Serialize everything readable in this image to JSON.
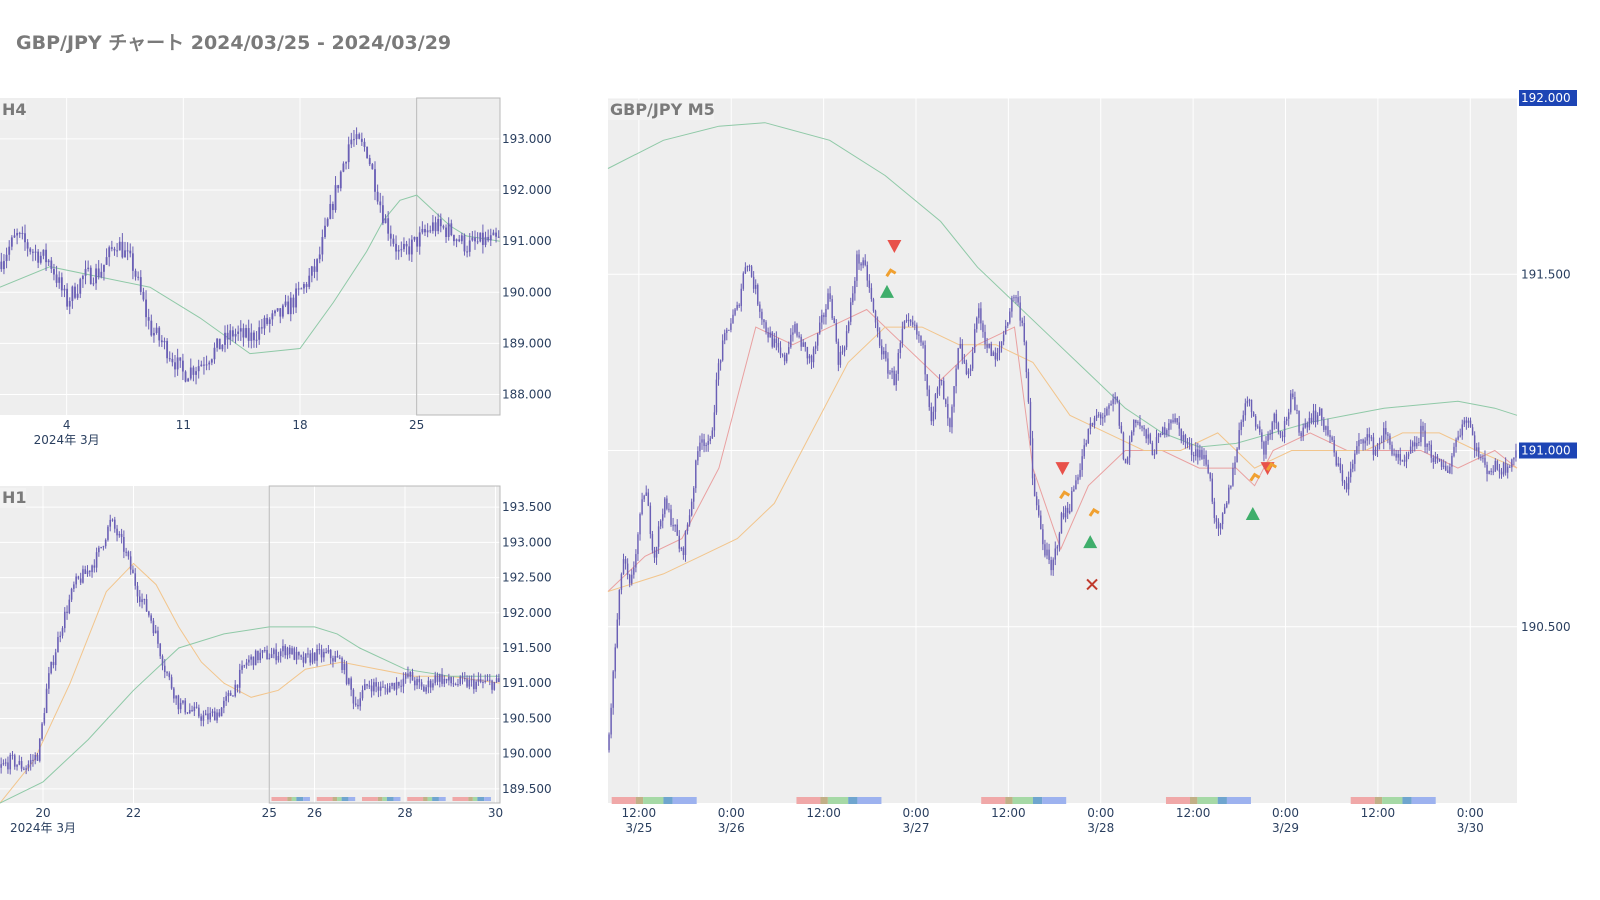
{
  "page": {
    "title": "GBP/JPY チャート 2024/03/25 - 2024/03/29"
  },
  "colors": {
    "candle": "#6a5fb5",
    "ma_short": "#e9a0a0",
    "ma_mid": "#f2c58c",
    "ma_long": "#8fc9a7",
    "plot_bg": "#eeeeee",
    "grid": "#ffffff",
    "label_highlight": "#1d45b5",
    "buy_marker": "#3fae6b",
    "sell_marker": "#e8514a",
    "exit_marker": "#f0a030",
    "stop_marker": "#c0392b"
  },
  "chart_data": [
    {
      "id": "h4",
      "type": "candlestick",
      "label": "H4",
      "ylim": [
        187.6,
        193.8
      ],
      "yticks": [
        "188.000",
        "189.000",
        "190.000",
        "191.000",
        "192.000",
        "193.000"
      ],
      "ytick_values": [
        188,
        189,
        190,
        191,
        192,
        193
      ],
      "xlim": [
        0,
        30
      ],
      "xtick_labels": [
        "4",
        "11",
        "18",
        "25"
      ],
      "xtick_positions": [
        4,
        11,
        18,
        25
      ],
      "xaxis_sublabel": "2024年 3月",
      "highlight_range": [
        25,
        30
      ],
      "series": [
        {
          "name": "close",
          "x": [
            0,
            1,
            2,
            3,
            4,
            5,
            6,
            7,
            8,
            9,
            10,
            11,
            12,
            13,
            14,
            15,
            16,
            17,
            18,
            19,
            20,
            21,
            22,
            23,
            24,
            25,
            26,
            27,
            28,
            29,
            30
          ],
          "values": [
            190.6,
            191.1,
            190.8,
            190.6,
            189.8,
            190.3,
            190.4,
            191.0,
            190.5,
            189.3,
            188.9,
            188.4,
            188.6,
            188.9,
            189.2,
            189.1,
            189.4,
            189.6,
            190.0,
            190.5,
            191.8,
            193.0,
            192.8,
            191.5,
            190.7,
            191.0,
            191.3,
            191.2,
            190.9,
            191.0,
            191.0
          ]
        },
        {
          "name": "ma_long",
          "x": [
            0,
            3,
            6,
            9,
            12,
            15,
            18,
            20,
            22,
            23,
            24,
            25,
            26,
            27,
            28,
            30
          ],
          "values": [
            190.1,
            190.5,
            190.3,
            190.1,
            189.5,
            188.8,
            188.9,
            189.8,
            190.8,
            191.4,
            191.8,
            191.9,
            191.6,
            191.3,
            191.1,
            191.0
          ]
        }
      ]
    },
    {
      "id": "h1",
      "type": "candlestick",
      "label": "H1",
      "ylim": [
        189.3,
        193.8
      ],
      "yticks": [
        "189.500",
        "190.000",
        "190.500",
        "191.000",
        "191.500",
        "192.000",
        "192.500",
        "193.000",
        "193.500"
      ],
      "ytick_values": [
        189.5,
        190.0,
        190.5,
        191.0,
        191.5,
        192.0,
        192.5,
        193.0,
        193.5
      ],
      "xlim": [
        19.05,
        30.1
      ],
      "xtick_labels": [
        "20",
        "22",
        "25",
        "26",
        "28",
        "30"
      ],
      "xtick_positions": [
        20,
        22,
        25,
        26,
        28,
        30
      ],
      "xaxis_sublabel": "2024年 3月",
      "highlight_range": [
        25,
        30.1
      ],
      "series": [
        {
          "name": "close",
          "x": [
            19.05,
            19.3,
            19.6,
            19.9,
            20.1,
            20.4,
            20.7,
            21.0,
            21.2,
            21.5,
            21.8,
            22.1,
            22.4,
            22.7,
            23.0,
            23.3,
            23.6,
            23.9,
            24.2,
            24.5,
            24.8,
            25.1,
            25.4,
            25.7,
            26.0,
            26.3,
            26.6,
            26.9,
            27.2,
            27.5,
            27.8,
            28.1,
            28.4,
            28.7,
            29.0,
            29.3,
            29.6,
            29.9,
            30.1
          ],
          "values": [
            189.8,
            189.9,
            189.8,
            190.0,
            191.0,
            191.8,
            192.4,
            192.6,
            192.8,
            193.3,
            192.9,
            192.3,
            191.9,
            191.2,
            190.7,
            190.6,
            190.5,
            190.6,
            190.9,
            191.3,
            191.4,
            191.4,
            191.5,
            191.3,
            191.4,
            191.4,
            191.3,
            190.7,
            191.0,
            190.9,
            191.0,
            191.1,
            190.9,
            191.1,
            191.0,
            191.0,
            191.0,
            191.0,
            191.0
          ]
        },
        {
          "name": "ma_mid",
          "x": [
            19.05,
            19.8,
            20.6,
            21.4,
            22.0,
            22.5,
            23.0,
            23.5,
            24.0,
            24.6,
            25.2,
            25.8,
            26.6,
            27.4,
            28.2,
            29.0,
            30.1
          ],
          "values": [
            189.3,
            189.9,
            191.0,
            192.3,
            192.7,
            192.4,
            191.8,
            191.3,
            191.0,
            190.8,
            190.9,
            191.2,
            191.3,
            191.2,
            191.1,
            191.1,
            191.0
          ]
        },
        {
          "name": "ma_long",
          "x": [
            19.05,
            20.0,
            21.0,
            22.0,
            23.0,
            24.0,
            25.0,
            26.0,
            26.5,
            27.0,
            28.0,
            29.0,
            30.1
          ],
          "values": [
            189.3,
            189.6,
            190.2,
            190.9,
            191.5,
            191.7,
            191.8,
            191.8,
            191.7,
            191.5,
            191.2,
            191.1,
            191.1
          ]
        }
      ]
    },
    {
      "id": "m5",
      "type": "candlestick",
      "label": "GBP/JPY M5",
      "ylim": [
        190.0,
        192.0
      ],
      "yticks": [
        "190.500",
        "191.000",
        "191.500",
        "192.000"
      ],
      "ytick_values": [
        190.5,
        191.0,
        191.5,
        192.0
      ],
      "highlighted_ticks": [
        "192.000",
        "191.000"
      ],
      "xlim": [
        0,
        4.92
      ],
      "xtick_labels": [
        [
          "12:00",
          "3/25"
        ],
        [
          "0:00",
          "3/26"
        ],
        [
          "12:00",
          ""
        ],
        [
          "0:00",
          "3/27"
        ],
        [
          "12:00",
          ""
        ],
        [
          "0:00",
          "3/28"
        ],
        [
          "12:00",
          ""
        ],
        [
          "0:00",
          "3/29"
        ],
        [
          "12:00",
          ""
        ],
        [
          "0:00",
          "3/30"
        ]
      ],
      "xtick_positions": [
        0.167,
        0.667,
        1.167,
        1.667,
        2.167,
        2.667,
        3.167,
        3.667,
        4.167,
        4.667
      ],
      "series": [
        {
          "name": "close",
          "x": [
            0,
            0.04,
            0.08,
            0.12,
            0.16,
            0.2,
            0.25,
            0.3,
            0.35,
            0.4,
            0.45,
            0.5,
            0.55,
            0.6,
            0.65,
            0.7,
            0.75,
            0.8,
            0.85,
            0.9,
            0.95,
            1.0,
            1.05,
            1.1,
            1.15,
            1.2,
            1.25,
            1.3,
            1.35,
            1.4,
            1.45,
            1.5,
            1.55,
            1.6,
            1.65,
            1.7,
            1.75,
            1.8,
            1.85,
            1.9,
            1.95,
            2.0,
            2.05,
            2.1,
            2.15,
            2.2,
            2.25,
            2.3,
            2.35,
            2.4,
            2.45,
            2.5,
            2.55,
            2.6,
            2.65,
            2.7,
            2.75,
            2.8,
            2.85,
            2.9,
            2.95,
            3.0,
            3.05,
            3.1,
            3.15,
            3.2,
            3.25,
            3.3,
            3.35,
            3.4,
            3.45,
            3.5,
            3.55,
            3.6,
            3.65,
            3.7,
            3.75,
            3.8,
            3.85,
            3.9,
            3.95,
            4.0,
            4.05,
            4.1,
            4.15,
            4.2,
            4.25,
            4.3,
            4.35,
            4.4,
            4.45,
            4.5,
            4.55,
            4.6,
            4.65,
            4.7,
            4.75,
            4.8,
            4.85,
            4.92
          ],
          "values": [
            190.15,
            190.45,
            190.7,
            190.6,
            190.75,
            190.9,
            190.7,
            190.85,
            190.8,
            190.7,
            190.85,
            191.05,
            191.0,
            191.25,
            191.35,
            191.4,
            191.55,
            191.45,
            191.35,
            191.3,
            191.25,
            191.35,
            191.3,
            191.25,
            191.35,
            191.45,
            191.25,
            191.35,
            191.55,
            191.5,
            191.35,
            191.25,
            191.2,
            191.35,
            191.35,
            191.3,
            191.1,
            191.2,
            191.05,
            191.3,
            191.2,
            191.4,
            191.3,
            191.25,
            191.35,
            191.45,
            191.35,
            190.9,
            190.75,
            190.65,
            190.8,
            190.85,
            190.95,
            191.05,
            191.1,
            191.1,
            191.15,
            190.95,
            191.1,
            191.05,
            191.0,
            191.05,
            191.1,
            191.05,
            191.0,
            191.0,
            190.95,
            190.75,
            190.85,
            191.0,
            191.15,
            191.1,
            191.0,
            191.1,
            191.05,
            191.15,
            191.05,
            191.1,
            191.1,
            191.05,
            190.95,
            190.9,
            191.0,
            191.05,
            191.0,
            191.05,
            191.0,
            190.95,
            191.0,
            191.05,
            191.0,
            190.95,
            190.95,
            191.05,
            191.1,
            191.0,
            190.95,
            190.95,
            190.95,
            191.0
          ]
        },
        {
          "name": "ma_short",
          "x": [
            0,
            0.2,
            0.4,
            0.6,
            0.8,
            1.0,
            1.2,
            1.4,
            1.6,
            1.8,
            2.0,
            2.2,
            2.3,
            2.45,
            2.6,
            2.8,
            3.0,
            3.2,
            3.4,
            3.5,
            3.6,
            3.8,
            4.0,
            4.2,
            4.4,
            4.6,
            4.8,
            4.92
          ],
          "values": [
            190.6,
            190.7,
            190.75,
            190.95,
            191.35,
            191.3,
            191.35,
            191.4,
            191.3,
            191.2,
            191.3,
            191.35,
            190.95,
            190.72,
            190.9,
            191.0,
            191.0,
            190.95,
            190.95,
            190.9,
            191.0,
            191.05,
            191.0,
            191.0,
            191.0,
            190.95,
            191.0,
            190.95
          ]
        },
        {
          "name": "ma_mid",
          "x": [
            0,
            0.3,
            0.5,
            0.7,
            0.9,
            1.1,
            1.3,
            1.5,
            1.7,
            1.9,
            2.1,
            2.3,
            2.5,
            2.7,
            2.9,
            3.1,
            3.3,
            3.5,
            3.7,
            3.9,
            4.1,
            4.3,
            4.5,
            4.7,
            4.92
          ],
          "values": [
            190.6,
            190.65,
            190.7,
            190.75,
            190.85,
            191.05,
            191.25,
            191.35,
            191.35,
            191.3,
            191.3,
            191.25,
            191.1,
            191.05,
            191.0,
            191.0,
            191.05,
            190.95,
            191.0,
            191.0,
            191.0,
            191.05,
            191.05,
            191.0,
            190.95
          ]
        },
        {
          "name": "ma_long",
          "x": [
            0,
            0.3,
            0.6,
            0.85,
            1.2,
            1.5,
            1.8,
            2.0,
            2.2,
            2.4,
            2.6,
            2.8,
            3.0,
            3.2,
            3.4,
            3.6,
            3.8,
            4.0,
            4.2,
            4.4,
            4.6,
            4.8,
            4.92
          ],
          "values": [
            191.8,
            191.88,
            191.92,
            191.93,
            191.88,
            191.78,
            191.65,
            191.52,
            191.42,
            191.32,
            191.22,
            191.12,
            191.05,
            191.01,
            191.02,
            191.05,
            191.08,
            191.1,
            191.12,
            191.13,
            191.14,
            191.12,
            191.1
          ]
        }
      ],
      "markers": [
        {
          "kind": "buy",
          "x": 1.51,
          "y": 191.45
        },
        {
          "kind": "sell",
          "x": 1.55,
          "y": 191.58
        },
        {
          "kind": "exit",
          "x": 1.53,
          "y": 191.5
        },
        {
          "kind": "sell",
          "x": 2.46,
          "y": 190.95
        },
        {
          "kind": "exit",
          "x": 2.47,
          "y": 190.87
        },
        {
          "kind": "buy",
          "x": 2.61,
          "y": 190.74
        },
        {
          "kind": "exit",
          "x": 2.63,
          "y": 190.82
        },
        {
          "kind": "stop",
          "x": 2.62,
          "y": 190.62
        },
        {
          "kind": "buy",
          "x": 3.49,
          "y": 190.82
        },
        {
          "kind": "exit",
          "x": 3.5,
          "y": 190.92
        },
        {
          "kind": "sell",
          "x": 3.57,
          "y": 190.95
        },
        {
          "kind": "exit",
          "x": 3.59,
          "y": 190.95
        }
      ]
    }
  ]
}
